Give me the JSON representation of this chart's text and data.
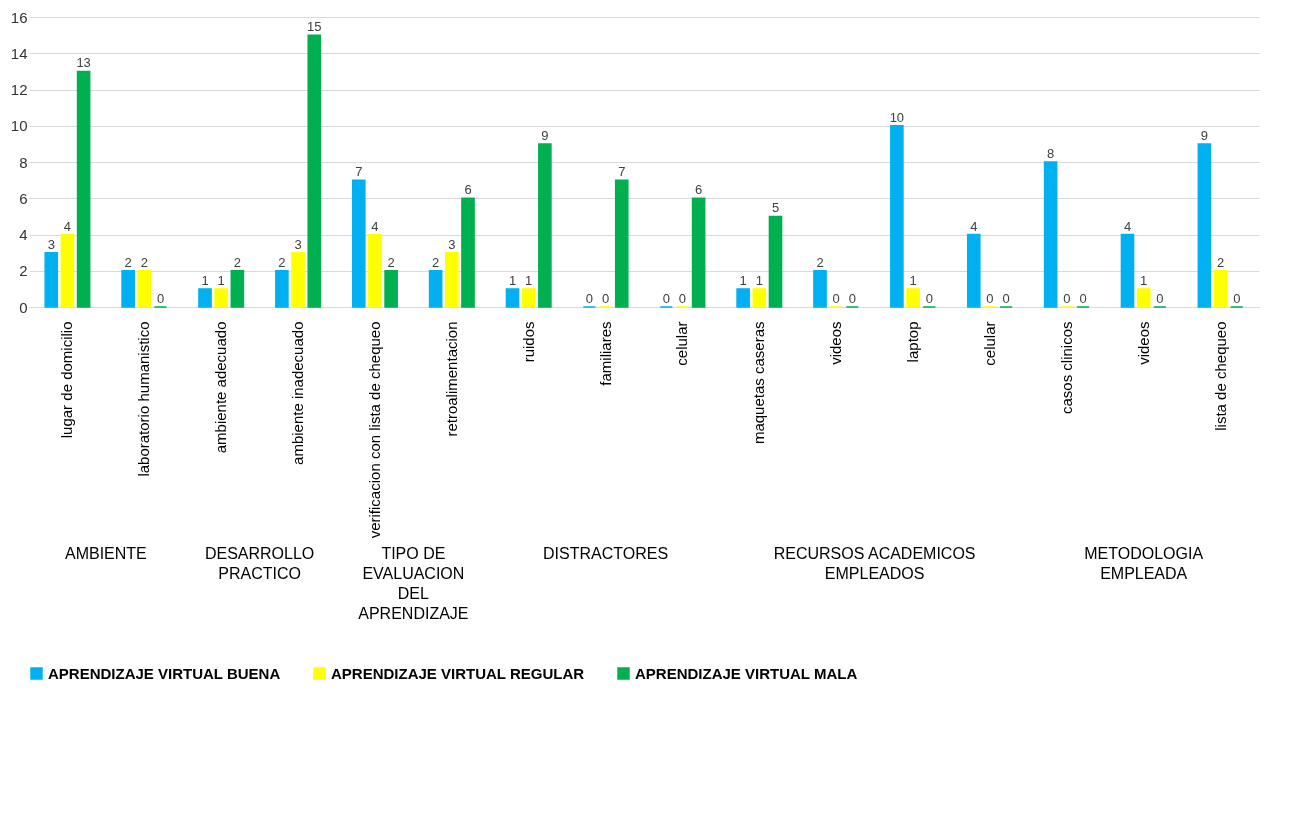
{
  "chart_data": {
    "type": "bar",
    "categories": [
      "lugar de domicilio",
      "laboratorio humanistico",
      "ambiente adecuado",
      "ambiente  inadecuado",
      "verificacion con lista de chequeo",
      "retroalimentacion",
      "ruidos",
      "familiares",
      "celular",
      "maquetas caseras",
      "videos",
      "laptop",
      "celular",
      "casos clinicos",
      "videos",
      "lista de chequeo"
    ],
    "series": [
      {
        "name": "APRENDIZAJE VIRTUAL BUENA",
        "color": "#00b0f0",
        "values": [
          3,
          2,
          1,
          2,
          7,
          2,
          1,
          0,
          0,
          1,
          2,
          10,
          4,
          8,
          4,
          9
        ]
      },
      {
        "name": "APRENDIZAJE VIRTUAL REGULAR",
        "color": "#ffff00",
        "values": [
          4,
          2,
          1,
          3,
          4,
          3,
          1,
          0,
          0,
          1,
          0,
          1,
          0,
          0,
          1,
          2
        ]
      },
      {
        "name": "APRENDIZAJE VIRTUAL MALA",
        "color": "#00b050",
        "values": [
          13,
          0,
          2,
          15,
          2,
          6,
          9,
          7,
          6,
          5,
          0,
          0,
          0,
          0,
          0,
          0
        ]
      }
    ],
    "annotations": [
      "AMBIENTE",
      "DESARROLLO PRACTICO",
      "TIPO DE EVALUACION DEL APRENDIZAJE",
      "DISTRACTORES",
      "RECURSOS ACADEMICOS EMPLEADOS",
      "METODOLOGIA EMPLEADA"
    ],
    "ylim": [
      0,
      16
    ],
    "yticks": [
      0,
      2,
      4,
      6,
      8,
      10,
      12,
      14,
      16
    ],
    "grid": "y",
    "legend": "bottom",
    "data_labels": true
  }
}
